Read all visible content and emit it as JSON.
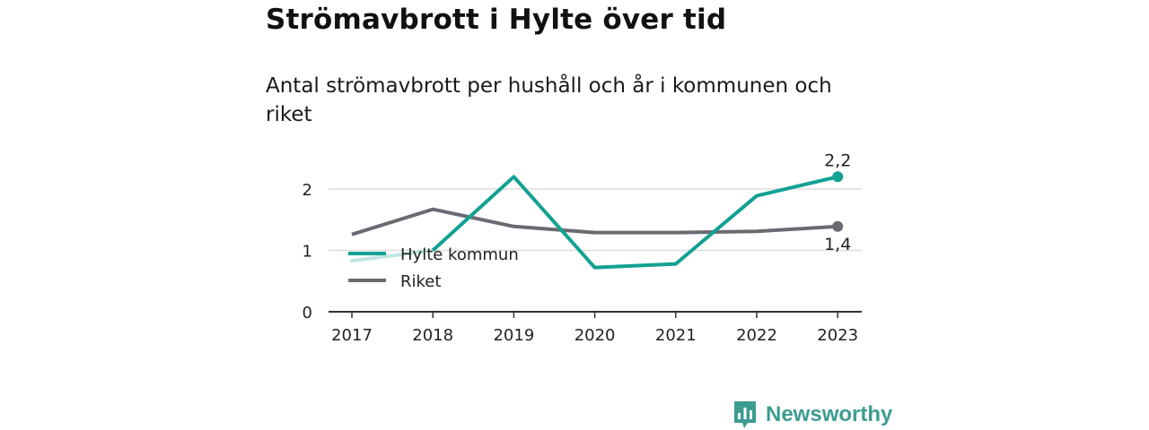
{
  "title": "Strömavbrott i Hylte över tid",
  "subtitle": "Antal strömavbrott per hushåll och år i kommunen och riket",
  "brand": {
    "name": "Newsworthy",
    "icon": "newsworthy-logo-icon"
  },
  "colors": {
    "hylte": "#12a193",
    "riket": "#6b6a72",
    "grid": "#dddddd",
    "axis": "#333333",
    "brand": "#3d9c92"
  },
  "chart_data": {
    "type": "line",
    "x": [
      "2017",
      "2018",
      "2019",
      "2020",
      "2021",
      "2022",
      "2023"
    ],
    "ylim": [
      0,
      2.5
    ],
    "yticks": [
      0,
      1,
      2
    ],
    "ytick_labels": [
      "0",
      "1",
      "2"
    ],
    "grid": true,
    "legend_position": "left",
    "series": [
      {
        "name": "Hylte kommun",
        "values": [
          0.83,
          1.0,
          2.2,
          0.72,
          0.78,
          1.89,
          2.2
        ],
        "end_label": "2,2"
      },
      {
        "name": "Riket",
        "values": [
          1.26,
          1.67,
          1.39,
          1.29,
          1.29,
          1.31,
          1.39
        ],
        "end_label": "1,4"
      }
    ]
  }
}
